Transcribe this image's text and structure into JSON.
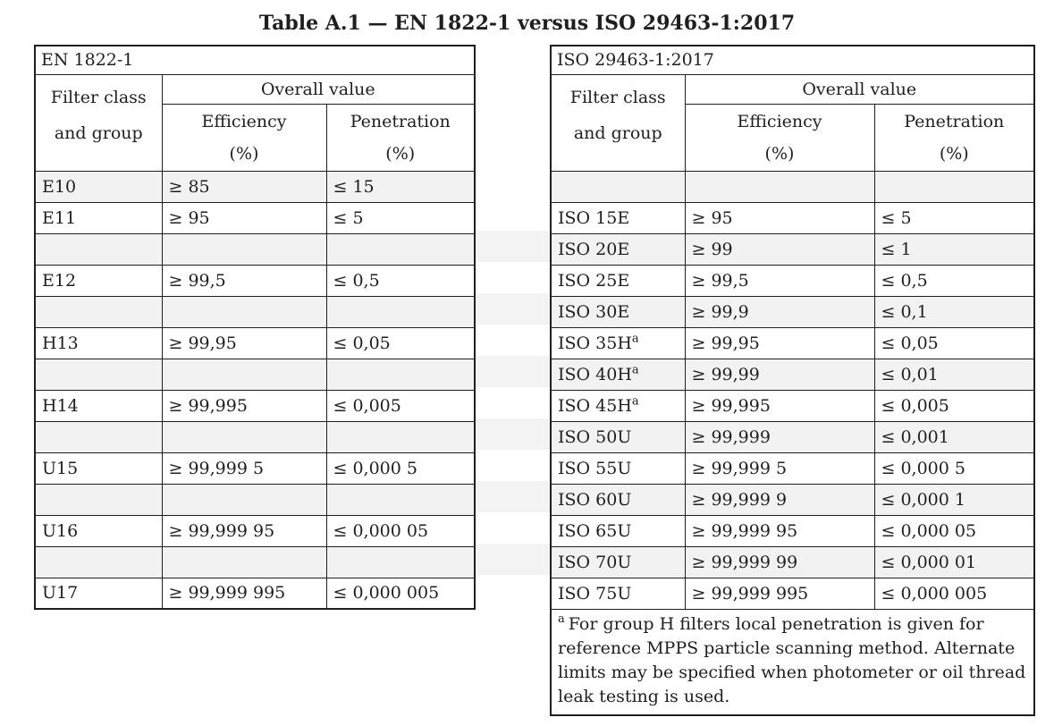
{
  "title": "Table A.1 — EN 1822-1 versus ISO 29463-1:2017",
  "en_table": {
    "caption": "EN 1822-1"
  },
  "iso_table": {
    "caption": "ISO 29463-1:2017",
    "footnote_marker": "a",
    "footnote_text": "For group H filters local penetration is given for reference MPPS particle scanning method. Alternate limits may be specified when photometer or oil thread leak testing is used."
  },
  "headers": {
    "filter_class_line1": "Filter class",
    "filter_class_line2": "and group",
    "overall_value": "Overall value",
    "efficiency": "Efficiency",
    "penetration": "Penetration",
    "percent_unit": "(%)"
  },
  "rows": [
    {
      "shaded": true,
      "en": {
        "filter_class": "E10",
        "efficiency": "≥ 85",
        "penetration": "≤ 15"
      },
      "iso": {
        "filter_class": "",
        "filter_class_sup": "",
        "efficiency": "",
        "penetration": ""
      }
    },
    {
      "shaded": false,
      "en": {
        "filter_class": "E11",
        "efficiency": "≥ 95",
        "penetration": "≤ 5"
      },
      "iso": {
        "filter_class": "ISO 15E",
        "filter_class_sup": "",
        "efficiency": "≥ 95",
        "penetration": "≤ 5"
      }
    },
    {
      "shaded": true,
      "en": {
        "filter_class": "",
        "efficiency": "",
        "penetration": ""
      },
      "iso": {
        "filter_class": "ISO 20E",
        "filter_class_sup": "",
        "efficiency": "≥ 99",
        "penetration": "≤ 1"
      }
    },
    {
      "shaded": false,
      "en": {
        "filter_class": "E12",
        "efficiency": "≥ 99,5",
        "penetration": "≤ 0,5"
      },
      "iso": {
        "filter_class": "ISO 25E",
        "filter_class_sup": "",
        "efficiency": "≥ 99,5",
        "penetration": "≤ 0,5"
      }
    },
    {
      "shaded": true,
      "en": {
        "filter_class": "",
        "efficiency": "",
        "penetration": ""
      },
      "iso": {
        "filter_class": "ISO 30E",
        "filter_class_sup": "",
        "efficiency": "≥ 99,9",
        "penetration": "≤ 0,1"
      }
    },
    {
      "shaded": false,
      "en": {
        "filter_class": "H13",
        "efficiency": "≥ 99,95",
        "penetration": "≤ 0,05"
      },
      "iso": {
        "filter_class": "ISO 35H",
        "filter_class_sup": "a",
        "efficiency": "≥ 99,95",
        "penetration": "≤ 0,05"
      }
    },
    {
      "shaded": true,
      "en": {
        "filter_class": "",
        "efficiency": "",
        "penetration": ""
      },
      "iso": {
        "filter_class": "ISO 40H",
        "filter_class_sup": "a",
        "efficiency": "≥ 99,99",
        "penetration": "≤ 0,01"
      }
    },
    {
      "shaded": false,
      "en": {
        "filter_class": "H14",
        "efficiency": "≥ 99,995",
        "penetration": "≤ 0,005"
      },
      "iso": {
        "filter_class": "ISO 45H",
        "filter_class_sup": "a",
        "efficiency": "≥ 99,995",
        "penetration": "≤ 0,005"
      }
    },
    {
      "shaded": true,
      "en": {
        "filter_class": "",
        "efficiency": "",
        "penetration": ""
      },
      "iso": {
        "filter_class": "ISO 50U",
        "filter_class_sup": "",
        "efficiency": "≥ 99,999",
        "penetration": "≤ 0,001"
      }
    },
    {
      "shaded": false,
      "en": {
        "filter_class": "U15",
        "efficiency": "≥ 99,999 5",
        "penetration": "≤ 0,000 5"
      },
      "iso": {
        "filter_class": "ISO 55U",
        "filter_class_sup": "",
        "efficiency": "≥ 99,999 5",
        "penetration": "≤ 0,000 5"
      }
    },
    {
      "shaded": true,
      "en": {
        "filter_class": "",
        "efficiency": "",
        "penetration": ""
      },
      "iso": {
        "filter_class": "ISO 60U",
        "filter_class_sup": "",
        "efficiency": "≥ 99,999 9",
        "penetration": "≤ 0,000 1"
      }
    },
    {
      "shaded": false,
      "en": {
        "filter_class": "U16",
        "efficiency": "≥ 99,999 95",
        "penetration": "≤ 0,000 05"
      },
      "iso": {
        "filter_class": "ISO 65U",
        "filter_class_sup": "",
        "efficiency": "≥ 99,999 95",
        "penetration": "≤ 0,000 05"
      }
    },
    {
      "shaded": true,
      "en": {
        "filter_class": "",
        "efficiency": "",
        "penetration": ""
      },
      "iso": {
        "filter_class": "ISO 70U",
        "filter_class_sup": "",
        "efficiency": "≥ 99,999 99",
        "penetration": "≤ 0,000 01"
      }
    },
    {
      "shaded": false,
      "en": {
        "filter_class": "U17",
        "efficiency": "≥ 99,999 995",
        "penetration": "≤ 0,000 005"
      },
      "iso": {
        "filter_class": "ISO 75U",
        "filter_class_sup": "",
        "efficiency": "≥ 99,999 995",
        "penetration": "≤ 0,000 005"
      }
    }
  ]
}
